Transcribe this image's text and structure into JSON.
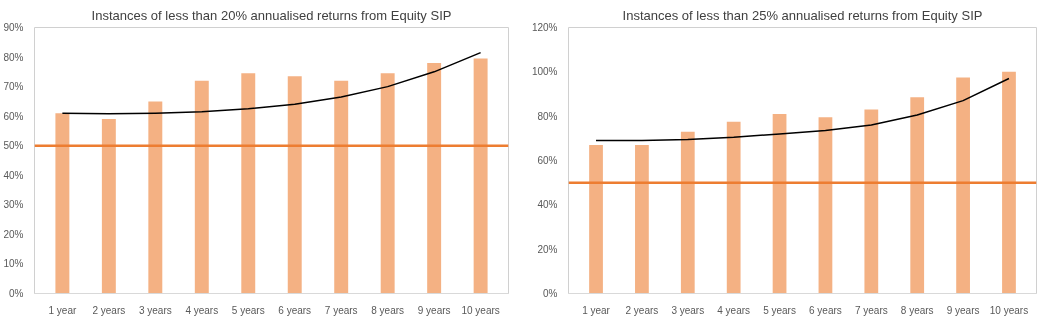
{
  "chart_data": [
    {
      "type": "bar",
      "title": "Instances of less than 20% annualised returns from Equity SIP",
      "categories": [
        "1 year",
        "2 years",
        "3 years",
        "4 years",
        "5 years",
        "6 years",
        "7 years",
        "8 years",
        "9 years",
        "10 years"
      ],
      "series": [
        {
          "color": "#f4b183",
          "values": [
            61,
            59,
            65,
            72,
            74.5,
            73.5,
            72,
            74.5,
            78,
            79.5
          ]
        },
        {
          "type": "line",
          "color": "#000000",
          "values": [
            61,
            60.8,
            61,
            61.5,
            62.5,
            64,
            66.5,
            70,
            75,
            81.5
          ]
        }
      ],
      "ylim": [
        0,
        90
      ],
      "yticks": [
        {
          "value": 0,
          "label": "0%"
        },
        {
          "value": 10,
          "label": "10%"
        },
        {
          "value": 20,
          "label": "20%"
        },
        {
          "value": 30,
          "label": "30%"
        },
        {
          "value": 40,
          "label": "40%"
        },
        {
          "value": 50,
          "label": "50%"
        },
        {
          "value": 60,
          "label": "60%"
        },
        {
          "value": 70,
          "label": "70%"
        },
        {
          "value": 80,
          "label": "80%"
        },
        {
          "value": 90,
          "label": "90%"
        }
      ],
      "ref_lines": [
        {
          "axis": "y",
          "value": 50,
          "color": "#ed7d31"
        }
      ],
      "grid": false
    },
    {
      "type": "bar",
      "title": "Instances of less than 25% annualised returns from Equity SIP",
      "categories": [
        "1 year",
        "2 years",
        "3 years",
        "4 years",
        "5 years",
        "6 years",
        "7 years",
        "8 years",
        "9 years",
        "10 years"
      ],
      "series": [
        {
          "color": "#f4b183",
          "values": [
            67,
            67,
            73,
            77.5,
            81,
            79.5,
            83,
            88.5,
            97.5,
            100
          ]
        },
        {
          "type": "line",
          "color": "#000000",
          "values": [
            69,
            69,
            69.5,
            70.5,
            72,
            73.5,
            76,
            80.5,
            87,
            97
          ]
        }
      ],
      "ylim": [
        0,
        120
      ],
      "yticks": [
        {
          "value": 0,
          "label": "0%"
        },
        {
          "value": 20,
          "label": "20%"
        },
        {
          "value": 40,
          "label": "40%"
        },
        {
          "value": 60,
          "label": "60%"
        },
        {
          "value": 80,
          "label": "80%"
        },
        {
          "value": 100,
          "label": "100%"
        },
        {
          "value": 120,
          "label": "120%"
        }
      ],
      "ref_lines": [
        {
          "axis": "y",
          "value": 50,
          "color": "#ed7d31"
        }
      ],
      "grid": false
    }
  ]
}
